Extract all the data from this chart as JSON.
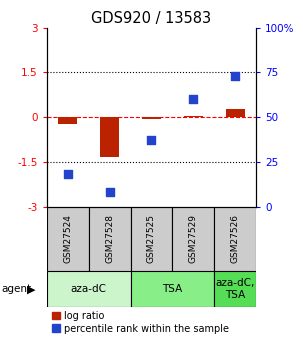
{
  "title": "GDS920 / 13583",
  "samples": [
    "GSM27524",
    "GSM27528",
    "GSM27525",
    "GSM27529",
    "GSM27526"
  ],
  "log_ratios": [
    -0.22,
    -1.35,
    -0.05,
    0.05,
    0.28
  ],
  "percentile_ranks": [
    18,
    8,
    37,
    60,
    73
  ],
  "ylim_left": [
    -3,
    3
  ],
  "ylim_right": [
    0,
    100
  ],
  "yticks_left": [
    -3,
    -1.5,
    0,
    1.5,
    3
  ],
  "yticks_right": [
    0,
    25,
    50,
    75,
    100
  ],
  "ytick_labels_left": [
    "-3",
    "-1.5",
    "0",
    "1.5",
    "3"
  ],
  "ytick_labels_right": [
    "0",
    "25",
    "50",
    "75",
    "100%"
  ],
  "hlines": [
    1.5,
    0.0,
    -1.5
  ],
  "hline_styles": [
    "dotted",
    "dashed",
    "dotted"
  ],
  "hline_colors": [
    "black",
    "red",
    "black"
  ],
  "agent_groups": [
    {
      "label": "aza-dC",
      "start": 0,
      "end": 2,
      "color": "#ccf5cc"
    },
    {
      "label": "TSA",
      "start": 2,
      "end": 4,
      "color": "#88ee88"
    },
    {
      "label": "aza-dC,\nTSA",
      "start": 4,
      "end": 5,
      "color": "#55dd55"
    }
  ],
  "bar_color": "#bb2200",
  "dot_color": "#2244cc",
  "bar_width": 0.45,
  "dot_size": 35,
  "legend_red_label": "log ratio",
  "legend_blue_label": "percentile rank within the sample",
  "tick_fontsize": 7.5,
  "sample_fontsize": 6.5,
  "agent_fontsize": 7.5,
  "legend_fontsize": 7,
  "title_fontsize": 10.5
}
